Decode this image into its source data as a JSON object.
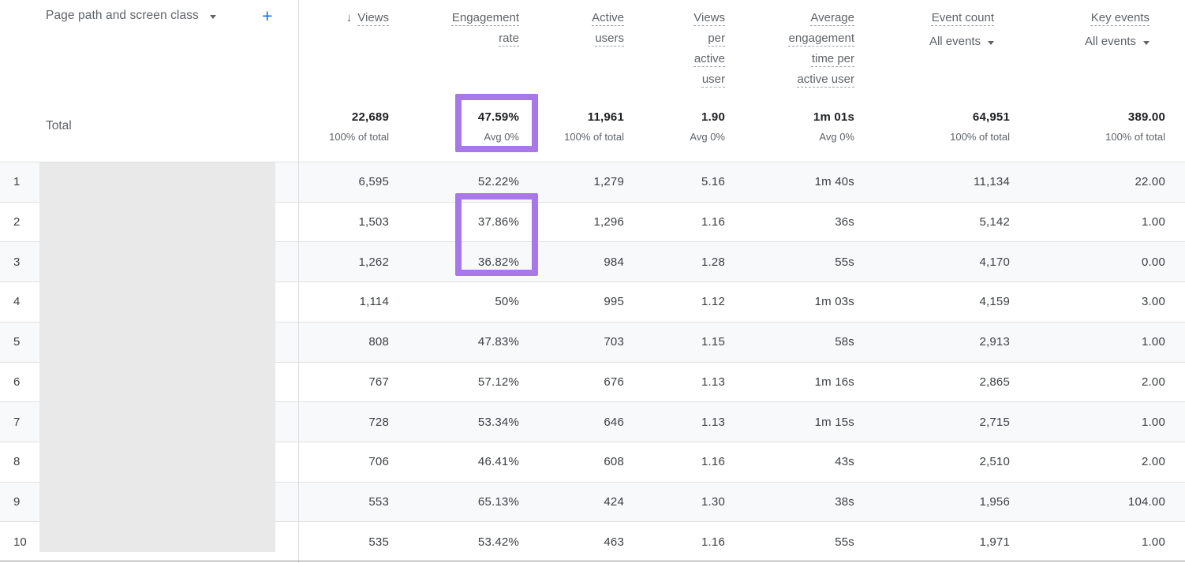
{
  "dimension_picker": {
    "label": "Page path and screen class",
    "add_button": "+"
  },
  "columns": {
    "views": {
      "label": "Views",
      "sort_indicator": "descending"
    },
    "engagement_rate": {
      "label": "Engagement\nrate"
    },
    "active_users": {
      "label": "Active\nusers"
    },
    "views_per_active_user": {
      "label": "Views\nper\nactive\nuser"
    },
    "avg_engagement_time": {
      "label": "Average\nengagement\ntime per\nactive user"
    },
    "event_count": {
      "label": "Event count",
      "filter": "All events"
    },
    "key_events": {
      "label": "Key events",
      "filter": "All events"
    }
  },
  "totals": {
    "label": "Total",
    "views": {
      "value": "22,689",
      "sub": "100% of total"
    },
    "engagement_rate": {
      "value": "47.59%",
      "sub": "Avg 0%"
    },
    "active_users": {
      "value": "11,961",
      "sub": "100% of total"
    },
    "views_per_active_user": {
      "value": "1.90",
      "sub": "Avg 0%"
    },
    "avg_engagement_time": {
      "value": "1m 01s",
      "sub": "Avg 0%"
    },
    "event_count": {
      "value": "64,951",
      "sub": "100% of total"
    },
    "key_events": {
      "value": "389.00",
      "sub": "100% of total"
    }
  },
  "rows": [
    {
      "num": "1",
      "views": "6,595",
      "engagement_rate": "52.22%",
      "active_users": "1,279",
      "views_per_active_user": "5.16",
      "avg_engagement_time": "1m 40s",
      "event_count": "11,134",
      "key_events": "22.00"
    },
    {
      "num": "2",
      "views": "1,503",
      "engagement_rate": "37.86%",
      "active_users": "1,296",
      "views_per_active_user": "1.16",
      "avg_engagement_time": "36s",
      "event_count": "5,142",
      "key_events": "1.00"
    },
    {
      "num": "3",
      "views": "1,262",
      "engagement_rate": "36.82%",
      "active_users": "984",
      "views_per_active_user": "1.28",
      "avg_engagement_time": "55s",
      "event_count": "4,170",
      "key_events": "0.00"
    },
    {
      "num": "4",
      "views": "1,114",
      "engagement_rate": "50%",
      "active_users": "995",
      "views_per_active_user": "1.12",
      "avg_engagement_time": "1m 03s",
      "event_count": "4,159",
      "key_events": "3.00"
    },
    {
      "num": "5",
      "views": "808",
      "engagement_rate": "47.83%",
      "active_users": "703",
      "views_per_active_user": "1.15",
      "avg_engagement_time": "58s",
      "event_count": "2,913",
      "key_events": "1.00"
    },
    {
      "num": "6",
      "views": "767",
      "engagement_rate": "57.12%",
      "active_users": "676",
      "views_per_active_user": "1.13",
      "avg_engagement_time": "1m 16s",
      "event_count": "2,865",
      "key_events": "2.00"
    },
    {
      "num": "7",
      "views": "728",
      "engagement_rate": "53.34%",
      "active_users": "646",
      "views_per_active_user": "1.13",
      "avg_engagement_time": "1m 15s",
      "event_count": "2,715",
      "key_events": "1.00"
    },
    {
      "num": "8",
      "views": "706",
      "engagement_rate": "46.41%",
      "active_users": "608",
      "views_per_active_user": "1.16",
      "avg_engagement_time": "43s",
      "event_count": "2,510",
      "key_events": "2.00"
    },
    {
      "num": "9",
      "views": "553",
      "engagement_rate": "65.13%",
      "active_users": "424",
      "views_per_active_user": "1.30",
      "avg_engagement_time": "38s",
      "event_count": "1,956",
      "key_events": "104.00"
    },
    {
      "num": "10",
      "views": "535",
      "engagement_rate": "53.42%",
      "active_users": "463",
      "views_per_active_user": "1.16",
      "avg_engagement_time": "55s",
      "event_count": "1,971",
      "key_events": "1.00"
    }
  ],
  "annotations": {
    "dimension_values_redacted": true,
    "highlighted_cells": [
      "total.engagement_rate",
      "rows.2.engagement_rate",
      "rows.3.engagement_rate"
    ]
  },
  "colors": {
    "highlight_purple": "#a878e8",
    "accent_blue": "#1a73e8",
    "header_text": "#5f6368",
    "value_text": "#3c4043",
    "row_alt_background": "#f8f9fa",
    "redaction_gray": "#e9e9e9"
  }
}
